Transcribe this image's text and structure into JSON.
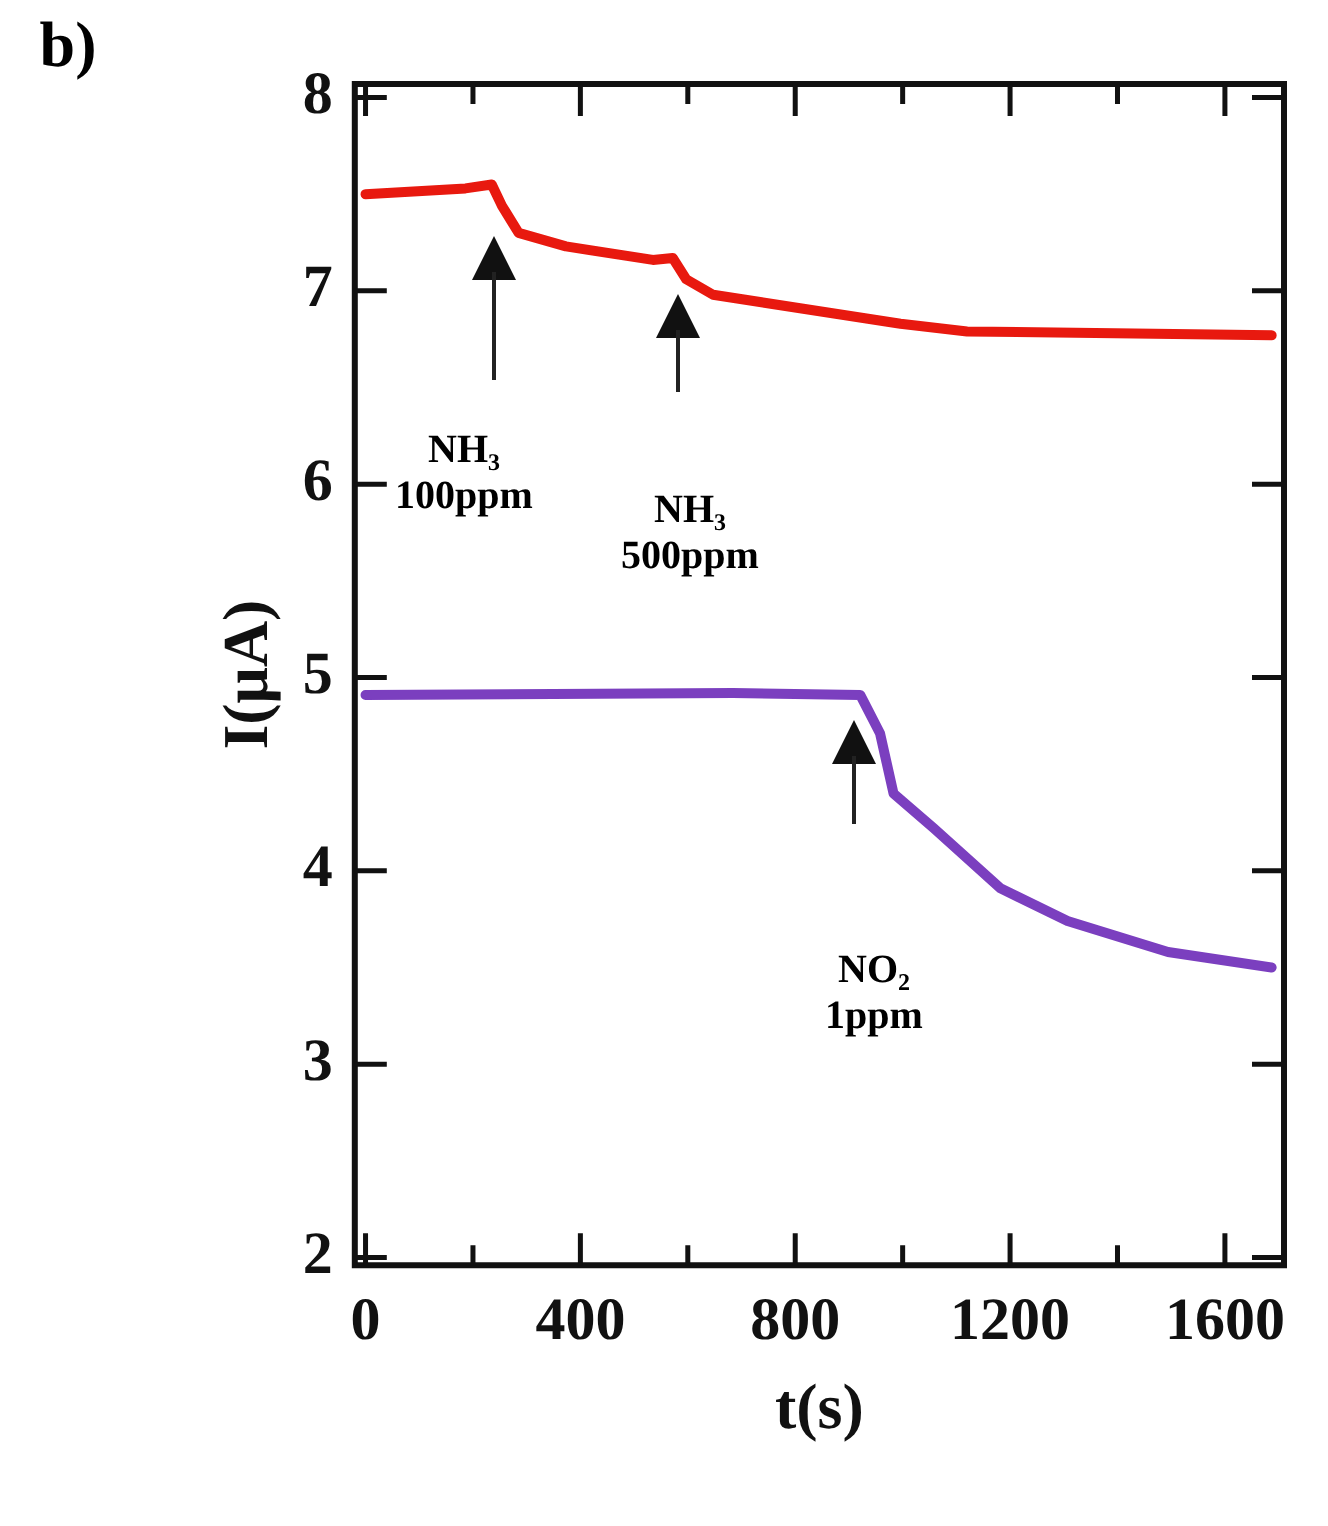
{
  "chart_data": {
    "type": "line",
    "xlabel": "t(s)",
    "ylabel": "I(μA)",
    "xlim": [
      -20,
      1710
    ],
    "ylim": [
      1.96,
      8.07
    ],
    "xticks": [
      0,
      {
        "value": 200,
        "label": null
      },
      400,
      {
        "value": 600,
        "label": null
      },
      800,
      {
        "value": 1000,
        "label": null
      },
      1200,
      {
        "value": 1400,
        "label": null
      },
      1600
    ],
    "yticks": [
      2,
      3,
      4,
      5,
      6,
      7,
      8
    ],
    "marker": "none",
    "line_style": "solid",
    "series": [
      {
        "color": "#e8190f",
        "x": [
          0,
          186,
          235,
          254,
          285,
          373,
          535,
          572,
          597,
          647,
          809,
          996,
          1120,
          1432,
          1687
        ],
        "values": [
          7.5,
          7.53,
          7.55,
          7.44,
          7.3,
          7.23,
          7.16,
          7.17,
          7.06,
          6.98,
          6.91,
          6.83,
          6.79,
          6.78,
          6.77
        ]
      },
      {
        "color": "#7b3fbf",
        "x": [
          0,
          684,
          921,
          958,
          983,
          1058,
          1182,
          1307,
          1494,
          1687
        ],
        "values": [
          4.91,
          4.92,
          4.91,
          4.71,
          4.4,
          4.22,
          3.91,
          3.74,
          3.58,
          3.5
        ]
      }
    ],
    "annotations": [
      "b)",
      "NH₃\n100ppm",
      "NH₃\n500ppm",
      "NO₂\n1ppm"
    ]
  }
}
